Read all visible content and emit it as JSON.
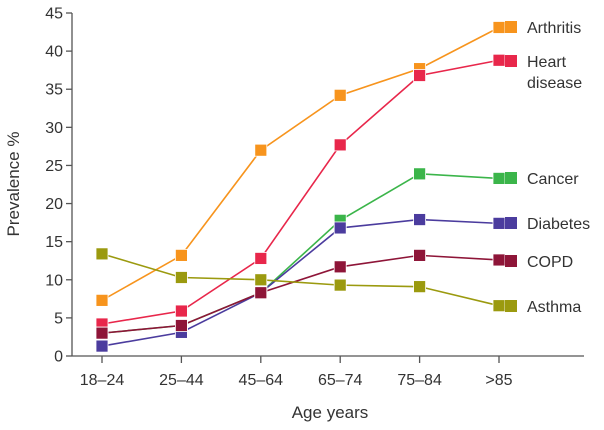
{
  "chart_data": {
    "type": "line",
    "title": "",
    "xlabel": "Age years",
    "ylabel": "Prevalence %",
    "categories": [
      "18–24",
      "25–44",
      "45–64",
      "65–74",
      "75–84",
      ">85"
    ],
    "ylim": [
      0,
      45
    ],
    "yticks": [
      0,
      5,
      10,
      15,
      20,
      25,
      30,
      35,
      40,
      45
    ],
    "grid": false,
    "legend_placement": "right (inline labels at line ends)",
    "series": [
      {
        "name": "Arthritis",
        "color": "#f7941d",
        "values": [
          7.3,
          13.2,
          27.0,
          34.2,
          37.7,
          43.1
        ]
      },
      {
        "name": "Heart disease",
        "name_lines": [
          "Heart",
          "disease"
        ],
        "color": "#e8274b",
        "values": [
          4.2,
          5.9,
          12.8,
          27.7,
          36.8,
          38.8
        ]
      },
      {
        "name": "Cancer",
        "color": "#3bb54a",
        "values": [
          3.0,
          4.0,
          8.3,
          17.8,
          23.9,
          23.3
        ]
      },
      {
        "name": "Diabetes",
        "color": "#4b3c9e",
        "values": [
          1.3,
          3.1,
          8.3,
          16.8,
          17.9,
          17.4
        ]
      },
      {
        "name": "COPD",
        "color": "#8e1538",
        "values": [
          3.0,
          4.0,
          8.3,
          11.7,
          13.2,
          12.6
        ]
      },
      {
        "name": "Asthma",
        "color": "#9b9a0f",
        "values": [
          13.4,
          10.3,
          10.0,
          9.3,
          9.1,
          6.6
        ]
      }
    ]
  }
}
